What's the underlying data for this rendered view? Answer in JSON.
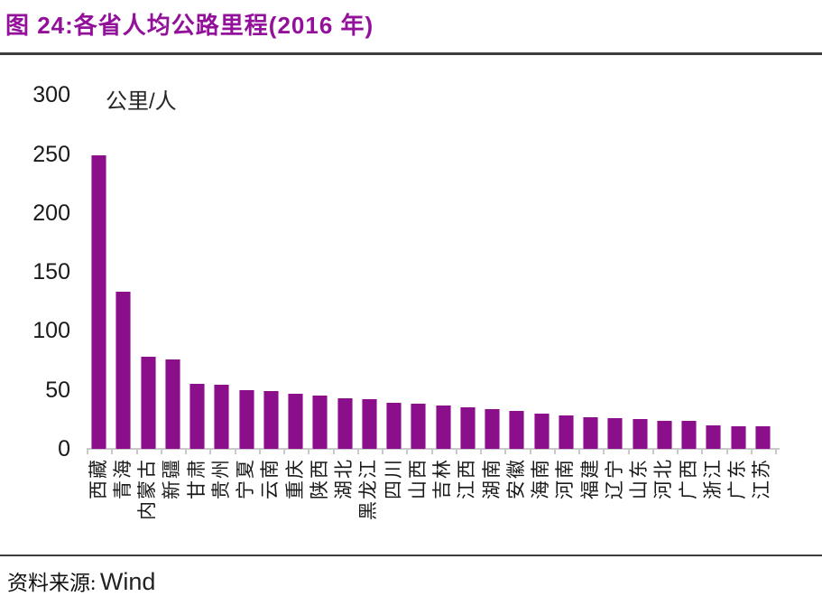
{
  "header": {
    "title": "图 24:各省人均公路里程(2016 年)"
  },
  "footer": {
    "source_label": "资料来源:",
    "source_value": "Wind"
  },
  "colors": {
    "title_purple": "#93119a",
    "bar_purple": "#8b0e8b",
    "bar_edge": "#c573c5",
    "axis_gray": "#c9c9c9",
    "rule_dark": "#3d3d3d",
    "text_black": "#1a1a1a"
  },
  "chart_data": {
    "type": "bar",
    "title": "各省人均公路里程(2016 年)",
    "unit_label": "公里/人",
    "xlabel": "",
    "ylabel": "公里/人",
    "ylim": [
      0,
      300
    ],
    "yticks": [
      0,
      50,
      100,
      150,
      200,
      250,
      300
    ],
    "grid": false,
    "legend": "none",
    "bar_color": "#8b0e8b",
    "categories": [
      "西藏",
      "青海",
      "内蒙古",
      "新疆",
      "甘肃",
      "贵州",
      "宁夏",
      "云南",
      "重庆",
      "陕西",
      "湖北",
      "黑龙江",
      "四川",
      "山西",
      "吉林",
      "江西",
      "湖南",
      "安徽",
      "海南",
      "河南",
      "福建",
      "辽宁",
      "山东",
      "河北",
      "广西",
      "浙江",
      "广东",
      "江苏"
    ],
    "values": [
      249,
      133,
      78,
      76,
      55,
      54,
      50,
      49,
      47,
      45,
      43,
      42,
      39,
      38,
      37,
      35,
      34,
      32,
      30,
      28,
      27,
      26,
      25,
      24,
      24,
      20,
      19,
      19
    ]
  }
}
